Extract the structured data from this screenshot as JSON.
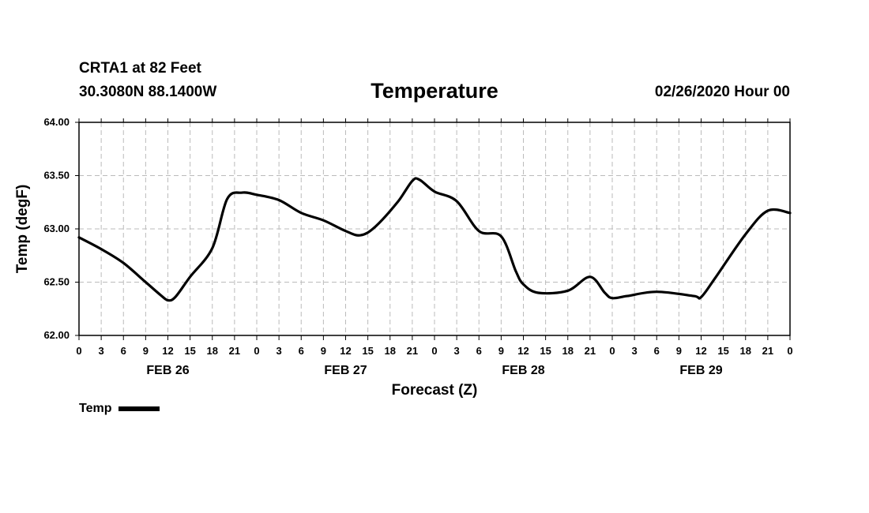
{
  "header": {
    "station": "CRTA1 at 82 Feet",
    "coords": "30.3080N 88.1400W",
    "datetime": "02/26/2020 Hour 00"
  },
  "legend": {
    "label": "Temp"
  },
  "colors": {
    "line": "#000000",
    "grid": "#bbbbbb",
    "axis": "#000000"
  },
  "chart_data": {
    "type": "line",
    "title": "Temperature",
    "xlabel": "Forecast (Z)",
    "ylabel": "Temp (degF)",
    "xlim": [
      0,
      96
    ],
    "ylim": [
      62.0,
      64.0
    ],
    "grid": true,
    "legend_position": "bottom-left",
    "y_ticks": [
      "64.00",
      "63.50",
      "63.00",
      "62.50",
      "62.00"
    ],
    "y_tick_values": [
      64.0,
      63.5,
      63.0,
      62.5,
      62.0
    ],
    "x_tick_labels": [
      "0",
      "3",
      "6",
      "9",
      "12",
      "15",
      "18",
      "21",
      "0",
      "3",
      "6",
      "9",
      "12",
      "15",
      "18",
      "21",
      "0",
      "3",
      "6",
      "9",
      "12",
      "15",
      "18",
      "21",
      "0",
      "3",
      "6",
      "9",
      "12",
      "15",
      "18",
      "21",
      "0"
    ],
    "date_labels": [
      "FEB 26",
      "FEB 27",
      "FEB 28",
      "FEB 29"
    ],
    "date_label_hours": [
      12,
      36,
      60,
      84
    ],
    "series": [
      {
        "name": "Temp",
        "x": [
          0,
          3,
          6,
          9,
          11,
          12,
          13,
          15,
          18,
          20,
          22,
          24,
          27,
          30,
          33,
          36,
          38,
          40,
          43,
          45,
          46,
          48,
          51,
          54,
          57,
          59,
          60,
          62,
          66,
          69,
          71,
          72,
          74,
          78,
          83,
          84,
          86,
          90,
          93,
          96
        ],
        "y": [
          62.92,
          62.81,
          62.68,
          62.5,
          62.38,
          62.33,
          62.36,
          62.55,
          62.82,
          63.28,
          63.34,
          63.32,
          63.27,
          63.15,
          63.08,
          62.98,
          62.94,
          63.02,
          63.25,
          63.45,
          63.46,
          63.35,
          63.26,
          62.98,
          62.93,
          62.6,
          62.48,
          62.4,
          62.42,
          62.55,
          62.4,
          62.35,
          62.37,
          62.41,
          62.37,
          62.36,
          62.55,
          62.95,
          63.17,
          63.15
        ]
      }
    ]
  }
}
